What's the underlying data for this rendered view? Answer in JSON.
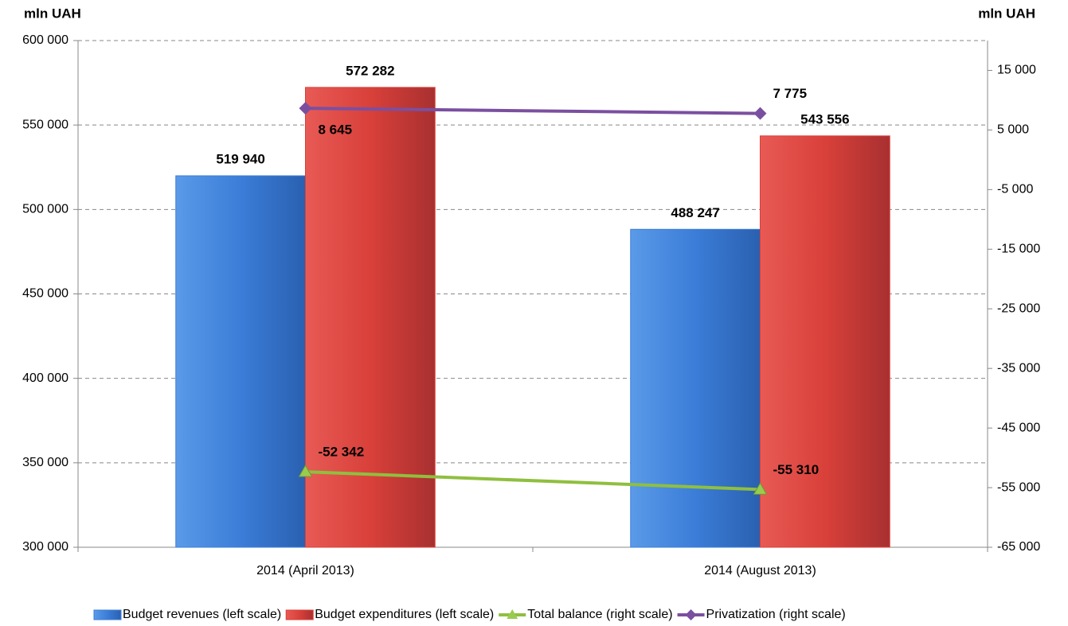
{
  "chart_data": {
    "type": "bar",
    "y_label": "mln UAH",
    "y2_label": "mln UAH",
    "categories": [
      "2014 (April 2013)",
      "2014 (August 2013)"
    ],
    "ylim": [
      300000,
      600000
    ],
    "yticks": [
      {
        "value": 300000,
        "label": "300 000"
      },
      {
        "value": 350000,
        "label": "350 000"
      },
      {
        "value": 400000,
        "label": "400 000"
      },
      {
        "value": 450000,
        "label": "450 000"
      },
      {
        "value": 500000,
        "label": "500 000"
      },
      {
        "value": 550000,
        "label": "550 000"
      },
      {
        "value": 600000,
        "label": "600 000"
      }
    ],
    "y2lim": [
      -65000,
      20000
    ],
    "y2ticks": [
      {
        "value": -65000,
        "label": "-65 000"
      },
      {
        "value": -55000,
        "label": "-55 000"
      },
      {
        "value": -45000,
        "label": "-45 000"
      },
      {
        "value": -35000,
        "label": "-35 000"
      },
      {
        "value": -25000,
        "label": "-25 000"
      },
      {
        "value": -15000,
        "label": "-15 000"
      },
      {
        "value": -5000,
        "label": "-5 000"
      },
      {
        "value": 5000,
        "label": "5 000"
      },
      {
        "value": 15000,
        "label": "15 000"
      }
    ],
    "grid": true,
    "legend": "bottom",
    "series": [
      {
        "name": "Budget revenues (left scale)",
        "type": "bar",
        "color": "#3b7dd8",
        "values": [
          519940,
          488247
        ],
        "value_labels": [
          "519 940",
          "488 247"
        ]
      },
      {
        "name": "Budget expenditures (left scale)",
        "type": "bar",
        "color": "#d9403a",
        "values": [
          572282,
          543556
        ],
        "value_labels": [
          "572 282",
          "543 556"
        ]
      },
      {
        "name": "Total balance (right scale)",
        "type": "line",
        "axis": "y2",
        "marker": "triangle",
        "color": "#8fbf3f",
        "values": [
          -52342,
          -55310
        ],
        "value_labels": [
          "-52 342",
          "-55 310"
        ]
      },
      {
        "name": "Privatization (right scale)",
        "type": "line",
        "axis": "y2",
        "marker": "diamond",
        "color": "#7b4fa0",
        "values": [
          8645,
          7775
        ],
        "value_labels": [
          "8 645",
          "7 775"
        ]
      }
    ]
  }
}
